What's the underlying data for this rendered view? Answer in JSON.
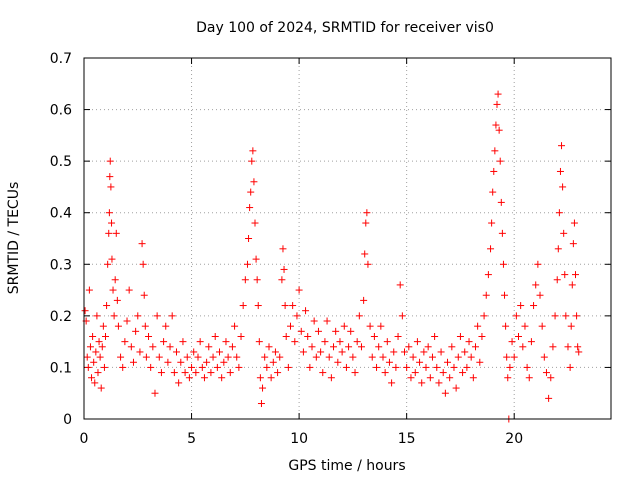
{
  "chart_data": {
    "type": "scatter",
    "title": "Day 100 of 2024, SRMTID for receiver vis0",
    "xlabel": "GPS time / hours",
    "ylabel": "SRMTID / TECUs",
    "xlim": [
      0,
      24.5
    ],
    "ylim": [
      0,
      0.7
    ],
    "xticks": [
      0,
      5,
      10,
      15,
      20
    ],
    "yticks": [
      0,
      0.1,
      0.2,
      0.3,
      0.4,
      0.5,
      0.6,
      0.7
    ],
    "xtick_labels": [
      "0",
      "5",
      "10",
      "15",
      "20"
    ],
    "ytick_labels": [
      "0",
      "0.1",
      "0.2",
      "0.3",
      "0.4",
      "0.5",
      "0.6",
      "0.7"
    ],
    "grid": true,
    "marker": "plus",
    "color": "#ff0000",
    "series": [
      {
        "name": "vis0",
        "points": [
          [
            0.05,
            0.21
          ],
          [
            0.1,
            0.19
          ],
          [
            0.15,
            0.12
          ],
          [
            0.2,
            0.1
          ],
          [
            0.25,
            0.25
          ],
          [
            0.3,
            0.14
          ],
          [
            0.35,
            0.08
          ],
          [
            0.4,
            0.16
          ],
          [
            0.45,
            0.11
          ],
          [
            0.5,
            0.07
          ],
          [
            0.55,
            0.13
          ],
          [
            0.6,
            0.2
          ],
          [
            0.65,
            0.09
          ],
          [
            0.7,
            0.15
          ],
          [
            0.75,
            0.12
          ],
          [
            0.8,
            0.06
          ],
          [
            0.85,
            0.14
          ],
          [
            0.9,
            0.18
          ],
          [
            0.95,
            0.1
          ],
          [
            1.0,
            0.16
          ],
          [
            1.05,
            0.22
          ],
          [
            1.1,
            0.3
          ],
          [
            1.15,
            0.36
          ],
          [
            1.18,
            0.4
          ],
          [
            1.2,
            0.47
          ],
          [
            1.22,
            0.5
          ],
          [
            1.25,
            0.45
          ],
          [
            1.28,
            0.38
          ],
          [
            1.3,
            0.31
          ],
          [
            1.35,
            0.25
          ],
          [
            1.4,
            0.2
          ],
          [
            1.45,
            0.27
          ],
          [
            1.5,
            0.36
          ],
          [
            1.55,
            0.23
          ],
          [
            1.6,
            0.18
          ],
          [
            1.7,
            0.12
          ],
          [
            1.8,
            0.1
          ],
          [
            1.9,
            0.15
          ],
          [
            2.0,
            0.19
          ],
          [
            2.1,
            0.25
          ],
          [
            2.2,
            0.14
          ],
          [
            2.3,
            0.11
          ],
          [
            2.4,
            0.17
          ],
          [
            2.5,
            0.2
          ],
          [
            2.6,
            0.13
          ],
          [
            2.7,
            0.34
          ],
          [
            2.75,
            0.3
          ],
          [
            2.8,
            0.24
          ],
          [
            2.85,
            0.18
          ],
          [
            2.9,
            0.12
          ],
          [
            3.0,
            0.16
          ],
          [
            3.1,
            0.1
          ],
          [
            3.2,
            0.14
          ],
          [
            3.3,
            0.05
          ],
          [
            3.4,
            0.2
          ],
          [
            3.5,
            0.12
          ],
          [
            3.6,
            0.09
          ],
          [
            3.7,
            0.15
          ],
          [
            3.8,
            0.18
          ],
          [
            3.9,
            0.11
          ],
          [
            4.0,
            0.14
          ],
          [
            4.1,
            0.2
          ],
          [
            4.2,
            0.09
          ],
          [
            4.3,
            0.13
          ],
          [
            4.4,
            0.07
          ],
          [
            4.5,
            0.11
          ],
          [
            4.6,
            0.15
          ],
          [
            4.7,
            0.09
          ],
          [
            4.8,
            0.12
          ],
          [
            4.9,
            0.08
          ],
          [
            5.0,
            0.1
          ],
          [
            5.1,
            0.13
          ],
          [
            5.2,
            0.09
          ],
          [
            5.3,
            0.12
          ],
          [
            5.4,
            0.15
          ],
          [
            5.5,
            0.1
          ],
          [
            5.6,
            0.08
          ],
          [
            5.7,
            0.11
          ],
          [
            5.8,
            0.14
          ],
          [
            5.9,
            0.09
          ],
          [
            6.0,
            0.12
          ],
          [
            6.1,
            0.16
          ],
          [
            6.2,
            0.1
          ],
          [
            6.3,
            0.13
          ],
          [
            6.4,
            0.08
          ],
          [
            6.5,
            0.11
          ],
          [
            6.6,
            0.15
          ],
          [
            6.7,
            0.12
          ],
          [
            6.8,
            0.09
          ],
          [
            6.9,
            0.14
          ],
          [
            7.0,
            0.18
          ],
          [
            7.1,
            0.12
          ],
          [
            7.2,
            0.1
          ],
          [
            7.3,
            0.16
          ],
          [
            7.4,
            0.22
          ],
          [
            7.5,
            0.27
          ],
          [
            7.6,
            0.3
          ],
          [
            7.65,
            0.35
          ],
          [
            7.7,
            0.41
          ],
          [
            7.75,
            0.44
          ],
          [
            7.8,
            0.5
          ],
          [
            7.85,
            0.52
          ],
          [
            7.9,
            0.46
          ],
          [
            7.95,
            0.38
          ],
          [
            8.0,
            0.31
          ],
          [
            8.05,
            0.27
          ],
          [
            8.1,
            0.22
          ],
          [
            8.15,
            0.15
          ],
          [
            8.2,
            0.08
          ],
          [
            8.25,
            0.03
          ],
          [
            8.3,
            0.06
          ],
          [
            8.4,
            0.12
          ],
          [
            8.5,
            0.1
          ],
          [
            8.6,
            0.14
          ],
          [
            8.7,
            0.08
          ],
          [
            8.8,
            0.11
          ],
          [
            8.9,
            0.13
          ],
          [
            9.0,
            0.09
          ],
          [
            9.1,
            0.12
          ],
          [
            9.2,
            0.27
          ],
          [
            9.25,
            0.33
          ],
          [
            9.3,
            0.29
          ],
          [
            9.35,
            0.22
          ],
          [
            9.4,
            0.16
          ],
          [
            9.5,
            0.1
          ],
          [
            9.6,
            0.18
          ],
          [
            9.7,
            0.22
          ],
          [
            9.8,
            0.15
          ],
          [
            9.9,
            0.2
          ],
          [
            10.0,
            0.25
          ],
          [
            10.1,
            0.17
          ],
          [
            10.2,
            0.13
          ],
          [
            10.3,
            0.21
          ],
          [
            10.4,
            0.16
          ],
          [
            10.5,
            0.1
          ],
          [
            10.6,
            0.14
          ],
          [
            10.7,
            0.19
          ],
          [
            10.8,
            0.12
          ],
          [
            10.9,
            0.17
          ],
          [
            11.0,
            0.13
          ],
          [
            11.1,
            0.09
          ],
          [
            11.2,
            0.15
          ],
          [
            11.3,
            0.19
          ],
          [
            11.4,
            0.12
          ],
          [
            11.5,
            0.08
          ],
          [
            11.6,
            0.14
          ],
          [
            11.7,
            0.17
          ],
          [
            11.8,
            0.11
          ],
          [
            11.9,
            0.15
          ],
          [
            12.0,
            0.13
          ],
          [
            12.1,
            0.18
          ],
          [
            12.2,
            0.1
          ],
          [
            12.3,
            0.14
          ],
          [
            12.4,
            0.17
          ],
          [
            12.5,
            0.12
          ],
          [
            12.6,
            0.09
          ],
          [
            12.7,
            0.15
          ],
          [
            12.8,
            0.2
          ],
          [
            12.9,
            0.14
          ],
          [
            13.0,
            0.23
          ],
          [
            13.05,
            0.32
          ],
          [
            13.1,
            0.38
          ],
          [
            13.15,
            0.4
          ],
          [
            13.2,
            0.3
          ],
          [
            13.3,
            0.18
          ],
          [
            13.4,
            0.12
          ],
          [
            13.5,
            0.16
          ],
          [
            13.6,
            0.1
          ],
          [
            13.7,
            0.14
          ],
          [
            13.8,
            0.18
          ],
          [
            13.9,
            0.12
          ],
          [
            14.0,
            0.09
          ],
          [
            14.1,
            0.15
          ],
          [
            14.2,
            0.11
          ],
          [
            14.3,
            0.07
          ],
          [
            14.4,
            0.13
          ],
          [
            14.5,
            0.1
          ],
          [
            14.6,
            0.16
          ],
          [
            14.7,
            0.26
          ],
          [
            14.8,
            0.2
          ],
          [
            14.9,
            0.13
          ],
          [
            15.0,
            0.1
          ],
          [
            15.1,
            0.14
          ],
          [
            15.2,
            0.08
          ],
          [
            15.3,
            0.12
          ],
          [
            15.4,
            0.09
          ],
          [
            15.5,
            0.15
          ],
          [
            15.6,
            0.11
          ],
          [
            15.7,
            0.07
          ],
          [
            15.8,
            0.13
          ],
          [
            15.9,
            0.1
          ],
          [
            16.0,
            0.14
          ],
          [
            16.1,
            0.08
          ],
          [
            16.2,
            0.12
          ],
          [
            16.3,
            0.16
          ],
          [
            16.4,
            0.1
          ],
          [
            16.5,
            0.07
          ],
          [
            16.6,
            0.13
          ],
          [
            16.7,
            0.09
          ],
          [
            16.8,
            0.05
          ],
          [
            16.9,
            0.11
          ],
          [
            17.0,
            0.08
          ],
          [
            17.1,
            0.14
          ],
          [
            17.2,
            0.1
          ],
          [
            17.3,
            0.06
          ],
          [
            17.4,
            0.12
          ],
          [
            17.5,
            0.16
          ],
          [
            17.6,
            0.09
          ],
          [
            17.7,
            0.13
          ],
          [
            17.8,
            0.1
          ],
          [
            17.9,
            0.15
          ],
          [
            18.0,
            0.12
          ],
          [
            18.1,
            0.08
          ],
          [
            18.2,
            0.14
          ],
          [
            18.3,
            0.18
          ],
          [
            18.4,
            0.11
          ],
          [
            18.5,
            0.16
          ],
          [
            18.6,
            0.2
          ],
          [
            18.7,
            0.24
          ],
          [
            18.8,
            0.28
          ],
          [
            18.9,
            0.33
          ],
          [
            18.95,
            0.38
          ],
          [
            19.0,
            0.44
          ],
          [
            19.05,
            0.48
          ],
          [
            19.1,
            0.52
          ],
          [
            19.15,
            0.57
          ],
          [
            19.2,
            0.61
          ],
          [
            19.25,
            0.63
          ],
          [
            19.3,
            0.56
          ],
          [
            19.35,
            0.5
          ],
          [
            19.4,
            0.42
          ],
          [
            19.45,
            0.36
          ],
          [
            19.5,
            0.3
          ],
          [
            19.55,
            0.24
          ],
          [
            19.6,
            0.18
          ],
          [
            19.65,
            0.12
          ],
          [
            19.7,
            0.08
          ],
          [
            19.75,
            0.0
          ],
          [
            19.8,
            0.1
          ],
          [
            19.9,
            0.15
          ],
          [
            20.0,
            0.12
          ],
          [
            20.1,
            0.2
          ],
          [
            20.2,
            0.16
          ],
          [
            20.3,
            0.22
          ],
          [
            20.4,
            0.14
          ],
          [
            20.5,
            0.18
          ],
          [
            20.6,
            0.1
          ],
          [
            20.7,
            0.08
          ],
          [
            20.8,
            0.15
          ],
          [
            20.9,
            0.22
          ],
          [
            21.0,
            0.26
          ],
          [
            21.1,
            0.3
          ],
          [
            21.2,
            0.24
          ],
          [
            21.3,
            0.18
          ],
          [
            21.4,
            0.12
          ],
          [
            21.5,
            0.09
          ],
          [
            21.6,
            0.04
          ],
          [
            21.7,
            0.08
          ],
          [
            21.8,
            0.14
          ],
          [
            21.9,
            0.2
          ],
          [
            22.0,
            0.27
          ],
          [
            22.05,
            0.33
          ],
          [
            22.1,
            0.4
          ],
          [
            22.15,
            0.48
          ],
          [
            22.2,
            0.53
          ],
          [
            22.25,
            0.45
          ],
          [
            22.3,
            0.36
          ],
          [
            22.35,
            0.28
          ],
          [
            22.4,
            0.2
          ],
          [
            22.5,
            0.14
          ],
          [
            22.6,
            0.1
          ],
          [
            22.65,
            0.18
          ],
          [
            22.7,
            0.26
          ],
          [
            22.75,
            0.34
          ],
          [
            22.8,
            0.38
          ],
          [
            22.85,
            0.28
          ],
          [
            22.9,
            0.2
          ],
          [
            22.95,
            0.14
          ],
          [
            23.0,
            0.13
          ]
        ]
      }
    ]
  }
}
